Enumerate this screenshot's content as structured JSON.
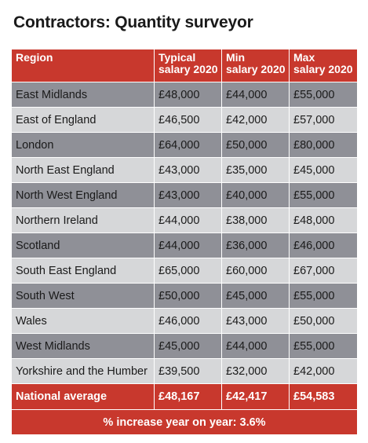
{
  "title": "Contractors: Quantity surveyor",
  "headers": {
    "region": "Region",
    "typical_line1": "Typical",
    "typical_line2": "salary 2020",
    "min_line1": "Min",
    "min_line2": "salary 2020",
    "max_line1": "Max",
    "max_line2": "salary 2020"
  },
  "rows": [
    {
      "region": "East Midlands",
      "typical": "£48,000",
      "min": "£44,000",
      "max": "£55,000"
    },
    {
      "region": "East of England",
      "typical": "£46,500",
      "min": "£42,000",
      "max": "£57,000"
    },
    {
      "region": "London",
      "typical": "£64,000",
      "min": "£50,000",
      "max": "£80,000"
    },
    {
      "region": "North East England",
      "typical": "£43,000",
      "min": "£35,000",
      "max": "£45,000"
    },
    {
      "region": "North West England",
      "typical": "£43,000",
      "min": "£40,000",
      "max": "£55,000"
    },
    {
      "region": "Northern Ireland",
      "typical": "£44,000",
      "min": "£38,000",
      "max": "£48,000"
    },
    {
      "region": "Scotland",
      "typical": "£44,000",
      "min": "£36,000",
      "max": "£46,000"
    },
    {
      "region": "South East England",
      "typical": "£65,000",
      "min": "£60,000",
      "max": "£67,000"
    },
    {
      "region": "South West",
      "typical": "£50,000",
      "min": "£45,000",
      "max": "£55,000"
    },
    {
      "region": "Wales",
      "typical": "£46,000",
      "min": "£43,000",
      "max": "£50,000"
    },
    {
      "region": "West Midlands",
      "typical": "£45,000",
      "min": "£44,000",
      "max": "£55,000"
    },
    {
      "region": "Yorkshire and the Humber",
      "typical": "£39,500",
      "min": "£32,000",
      "max": "£42,000"
    }
  ],
  "average": {
    "region": "National average",
    "typical": "£48,167",
    "min": "£42,417",
    "max": "£54,583"
  },
  "footer": "% increase year on year: 3.6%",
  "colors": {
    "accent": "#c8382d",
    "row_dark": "#8f9097",
    "row_light": "#d6d7d9"
  }
}
